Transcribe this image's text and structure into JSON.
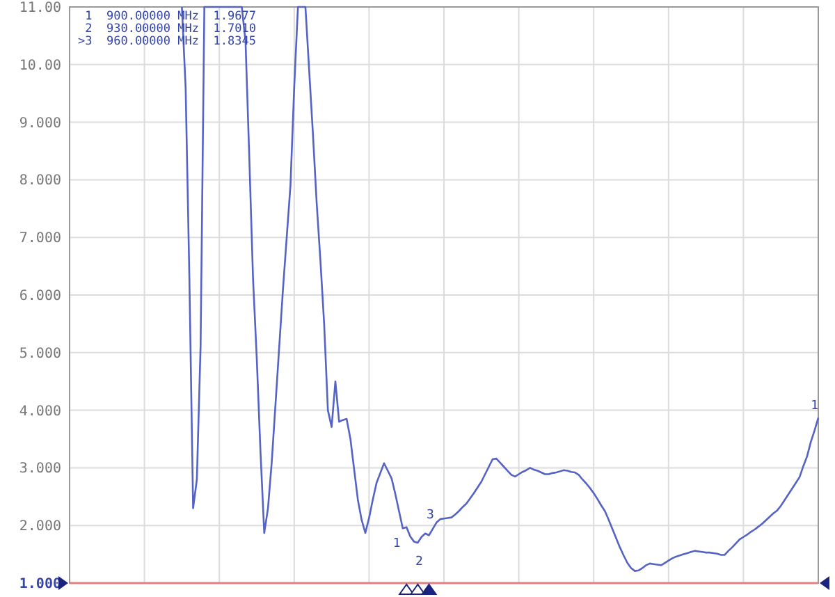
{
  "chart_data": {
    "type": "line",
    "categories": [
      null,
      null,
      null,
      null,
      null,
      null,
      null,
      null,
      null,
      null,
      null,
      null,
      null,
      null,
      null,
      null,
      null,
      null,
      null,
      null,
      null,
      null,
      null,
      null,
      null,
      null,
      null,
      null,
      null,
      null,
      null,
      null,
      null,
      null,
      null,
      null,
      null,
      null,
      null,
      null,
      null,
      null,
      null,
      null,
      null,
      null,
      null,
      null,
      null,
      null,
      null,
      null,
      null,
      null,
      null,
      null,
      null,
      null,
      null,
      null,
      null,
      null,
      null,
      null,
      null,
      null,
      null,
      null,
      null,
      null,
      null,
      null,
      null,
      null,
      null,
      null,
      null,
      null,
      null,
      null,
      null,
      null,
      null,
      null,
      null,
      null,
      null,
      null,
      null,
      null,
      null,
      null,
      null,
      null,
      null,
      null,
      null,
      null,
      null,
      null,
      null,
      null,
      null,
      null,
      null,
      null,
      null,
      null,
      null,
      null,
      null,
      null,
      null,
      null,
      null,
      null,
      null,
      null,
      null,
      null,
      null,
      null,
      null,
      null,
      null,
      null,
      null,
      null,
      null,
      null,
      null,
      null,
      null,
      null,
      null,
      null,
      null,
      null,
      null,
      null,
      null,
      null,
      null,
      null,
      null,
      null,
      null,
      null,
      null,
      null,
      null,
      null,
      null,
      null,
      null,
      null,
      null,
      null,
      null,
      null,
      null,
      null,
      null,
      null,
      null,
      null,
      null,
      null,
      null,
      null,
      null,
      null,
      null,
      null,
      null,
      null,
      null,
      null,
      null,
      null,
      null,
      null,
      null,
      null,
      null,
      null,
      null,
      null,
      null,
      null,
      null,
      null,
      null,
      null,
      null,
      null,
      null,
      null,
      null,
      null,
      null
    ],
    "series": [
      {
        "color": "#5563c4",
        "values": [
          null,
          null,
          null,
          null,
          null,
          null,
          null,
          null,
          null,
          null,
          null,
          null,
          null,
          null,
          null,
          null,
          null,
          null,
          null,
          null,
          null,
          null,
          null,
          null,
          null,
          null,
          null,
          null,
          null,
          null,
          11,
          9.6,
          6.3,
          2.3,
          2.8,
          5.13,
          11,
          11,
          11,
          11,
          11,
          11,
          11,
          11,
          11,
          11,
          11,
          10.4,
          8.4,
          6.29,
          4.9,
          3.27,
          1.87,
          2.3,
          3.1,
          4.1,
          5.1,
          6.1,
          7.0,
          7.9,
          9.6,
          11,
          11,
          11,
          9.9,
          8.8,
          7.6,
          6.6,
          5.5,
          4.0,
          3.71,
          4.5,
          3.8,
          3.83,
          3.85,
          3.51,
          2.98,
          2.45,
          2.1,
          1.87,
          2.13,
          2.45,
          2.74,
          2.91,
          3.08,
          2.95,
          2.82,
          2.55,
          2.25,
          1.95,
          1.97,
          1.81,
          1.72,
          1.7,
          1.8,
          1.86,
          1.83,
          1.94,
          2.05,
          2.11,
          2.12,
          2.13,
          2.14,
          2.19,
          2.25,
          2.32,
          2.38,
          2.47,
          2.56,
          2.66,
          2.76,
          2.89,
          3.02,
          3.15,
          3.16,
          3.09,
          3.02,
          2.95,
          2.88,
          2.85,
          2.89,
          2.93,
          2.96,
          3.0,
          2.97,
          2.95,
          2.92,
          2.89,
          2.89,
          2.91,
          2.92,
          2.94,
          2.96,
          2.95,
          2.93,
          2.92,
          2.88,
          2.8,
          2.73,
          2.65,
          2.56,
          2.46,
          2.35,
          2.25,
          2.1,
          1.94,
          1.78,
          1.62,
          1.48,
          1.35,
          1.26,
          1.21,
          1.22,
          1.26,
          1.31,
          1.34,
          1.33,
          1.32,
          1.31,
          1.35,
          1.39,
          1.43,
          1.46,
          1.48,
          1.5,
          1.52,
          1.54,
          1.56,
          1.55,
          1.54,
          1.53,
          1.53,
          1.52,
          1.51,
          1.49,
          1.49,
          1.56,
          1.62,
          1.69,
          1.76,
          1.8,
          1.84,
          1.89,
          1.93,
          1.98,
          2.03,
          2.09,
          2.15,
          2.21,
          2.26,
          2.34,
          2.44,
          2.54,
          2.64,
          2.74,
          2.84,
          3.03,
          3.2,
          3.45,
          3.65,
          3.87
        ]
      }
    ],
    "ylim": [
      1,
      11
    ],
    "yticks": [
      {
        "value": 1,
        "label": "1.000"
      },
      {
        "value": 2,
        "label": "2.000"
      },
      {
        "value": 3,
        "label": "3.000"
      },
      {
        "value": 4,
        "label": "4.000"
      },
      {
        "value": 5,
        "label": "5.000"
      },
      {
        "value": 6,
        "label": "6.000"
      },
      {
        "value": 7,
        "label": "7.000"
      },
      {
        "value": 8,
        "label": "8.000"
      },
      {
        "value": 9,
        "label": "9.000"
      },
      {
        "value": 10,
        "label": "10.00"
      },
      {
        "value": 11,
        "label": "11.00"
      }
    ],
    "grid": true,
    "ref_lines": [
      {
        "axis": "y",
        "value": 1,
        "color": "#e08080"
      }
    ],
    "annotations": [
      " 1  900.00000 MHz  1.9677",
      " 2  930.00000 MHz  1.7010",
      ">3  960.00000 MHz  1.8345",
      {
        "text": "1",
        "y": 1.97
      },
      {
        "text": "2",
        "y": 1.7
      },
      {
        "text": "3",
        "y": 1.83
      },
      {
        "text": "1",
        "y": 3.87
      }
    ]
  }
}
